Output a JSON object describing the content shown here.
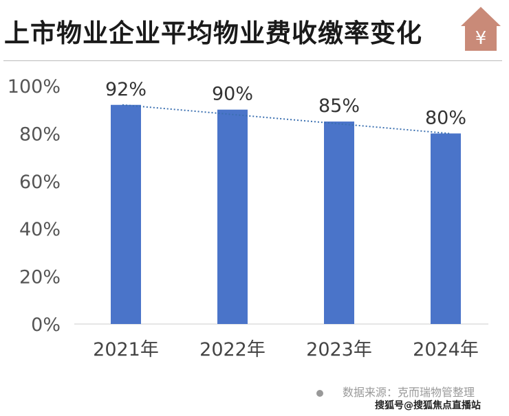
{
  "title": "上市物业企业平均物业费收缴率变化",
  "icon": "house-yen-icon",
  "source": "数据来源：克而瑞物管整理",
  "watermark": "搜狐号@搜狐焦点直播站",
  "chart_data": {
    "type": "bar",
    "categories": [
      "2021年",
      "2022年",
      "2023年",
      "2024年"
    ],
    "values": [
      92,
      90,
      85,
      80
    ],
    "data_labels": [
      "92%",
      "90%",
      "85%",
      "80%"
    ],
    "yticks": [
      "0%",
      "20%",
      "40%",
      "60%",
      "80%",
      "100%"
    ],
    "ylim": [
      0,
      100
    ],
    "trendline": "dotted",
    "grid": false,
    "colors": {
      "bar": "#4a74c9",
      "trend": "#3a6fb0",
      "icon": "#c98a78"
    }
  }
}
